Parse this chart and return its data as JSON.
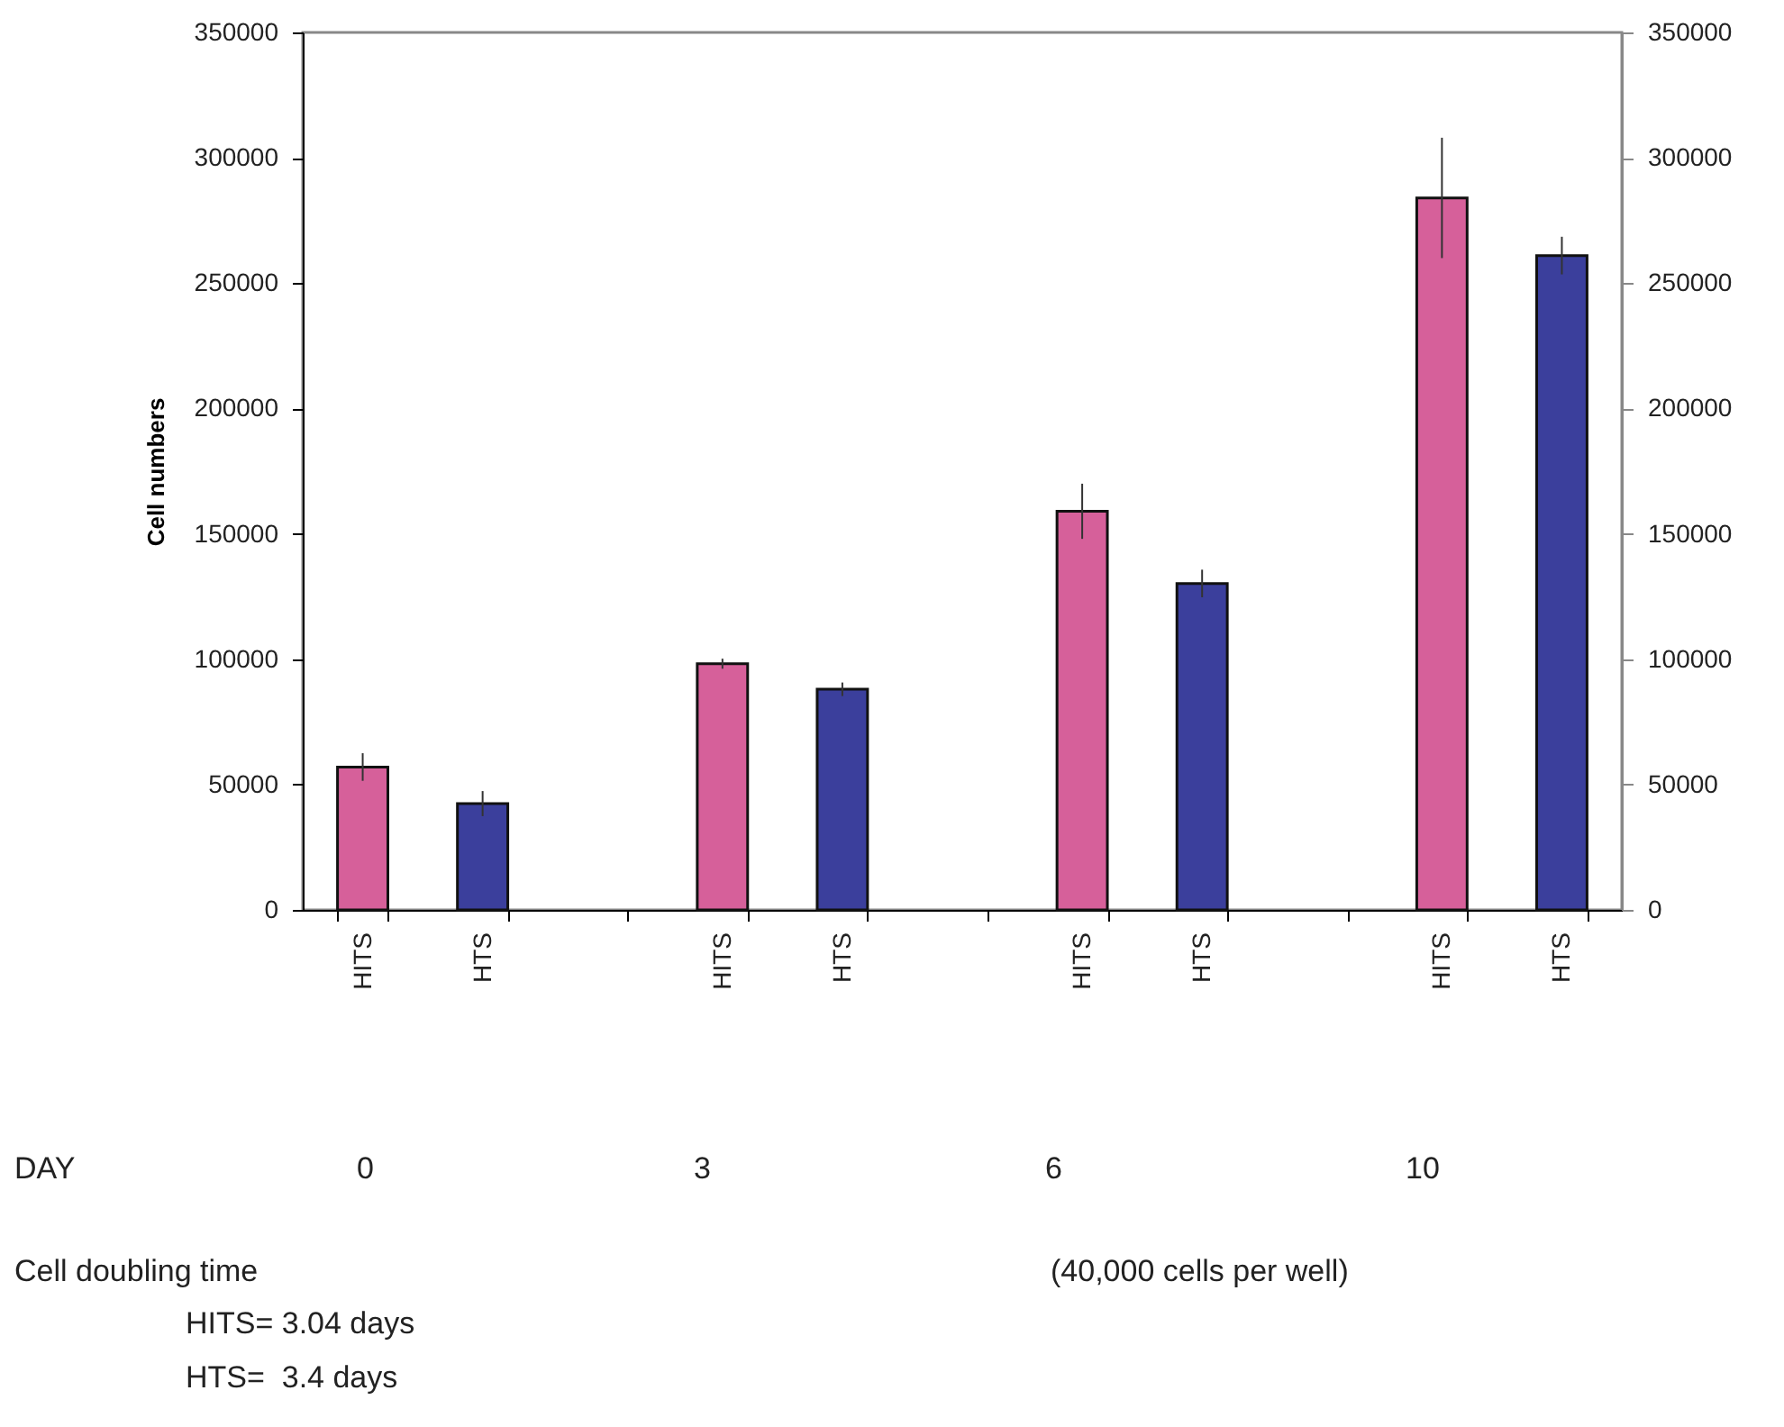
{
  "chart_data": {
    "type": "bar",
    "ylabel": "Cell numbers",
    "categories": [
      "HITS",
      "HTS",
      null,
      "HITS",
      "HTS",
      null,
      "HITS",
      "HTS",
      null,
      "HITS",
      "HTS"
    ],
    "values": [
      57000,
      42400,
      null,
      98200,
      88000,
      null,
      159000,
      130200,
      null,
      284000,
      261000
    ],
    "errors": [
      5500,
      5000,
      null,
      2000,
      2700,
      null,
      11000,
      5500,
      null,
      24000,
      7500
    ],
    "colors": [
      "#d6609a",
      "#3b3f9c",
      null,
      "#d6609a",
      "#3b3f9c",
      null,
      "#d6609a",
      "#3b3f9c",
      null,
      "#d6609a",
      "#3b3f9c"
    ],
    "ylim": [
      0,
      350000
    ],
    "yticks": [
      0,
      50000,
      100000,
      150000,
      200000,
      250000,
      300000,
      350000
    ],
    "y2lim": [
      0,
      350000
    ],
    "y2ticks": [
      0,
      50000,
      100000,
      150000,
      200000,
      250000,
      300000,
      350000
    ],
    "grid": false,
    "annotations": [
      "DAY",
      "0",
      "3",
      "6",
      "10",
      "Cell doubling time",
      "HITS= 3.04 days",
      "HTS=  3.4 days",
      "(40,000 cells per well)"
    ]
  }
}
